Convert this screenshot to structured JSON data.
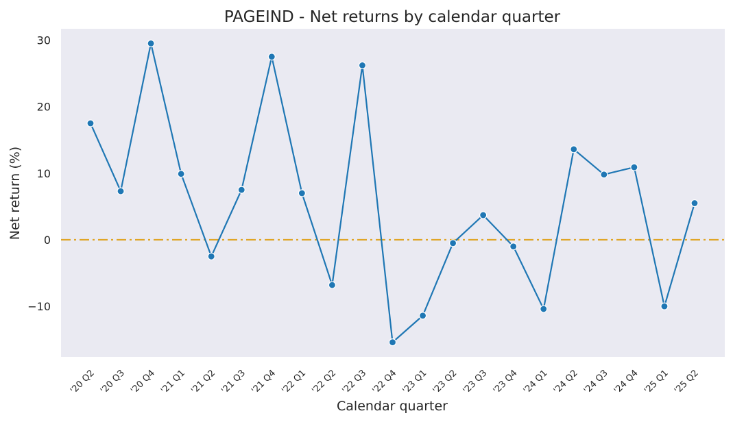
{
  "chart_data": {
    "type": "line",
    "title": "PAGEIND - Net returns by calendar quarter",
    "xlabel": "Calendar quarter",
    "ylabel": "Net return (%)",
    "categories": [
      "'20 Q2",
      "'20 Q3",
      "'20 Q4",
      "'21 Q1",
      "'21 Q2",
      "'21 Q3",
      "'21 Q4",
      "'22 Q1",
      "'22 Q2",
      "'22 Q3",
      "'22 Q4",
      "'23 Q1",
      "'23 Q2",
      "'23 Q3",
      "'23 Q4",
      "'24 Q1",
      "'24 Q2",
      "'24 Q3",
      "'24 Q4",
      "'25 Q1",
      "'25 Q2"
    ],
    "series": [
      {
        "values": [
          17.5,
          7.3,
          29.5,
          9.9,
          -2.5,
          7.5,
          27.5,
          7.0,
          -6.8,
          26.2,
          -15.4,
          -11.4,
          -0.5,
          3.7,
          -1.0,
          -10.4,
          13.6,
          9.8,
          10.9,
          -10.0,
          5.5
        ],
        "color": "#1f77b4"
      }
    ],
    "reference_line": {
      "y": 0,
      "color": "#e0a526",
      "style": "dash-dot"
    },
    "yticks": [
      -10,
      0,
      10,
      20,
      30
    ],
    "ylim": [
      -17.6,
      31.7
    ],
    "grid": false,
    "background": "#eaeaf2"
  }
}
